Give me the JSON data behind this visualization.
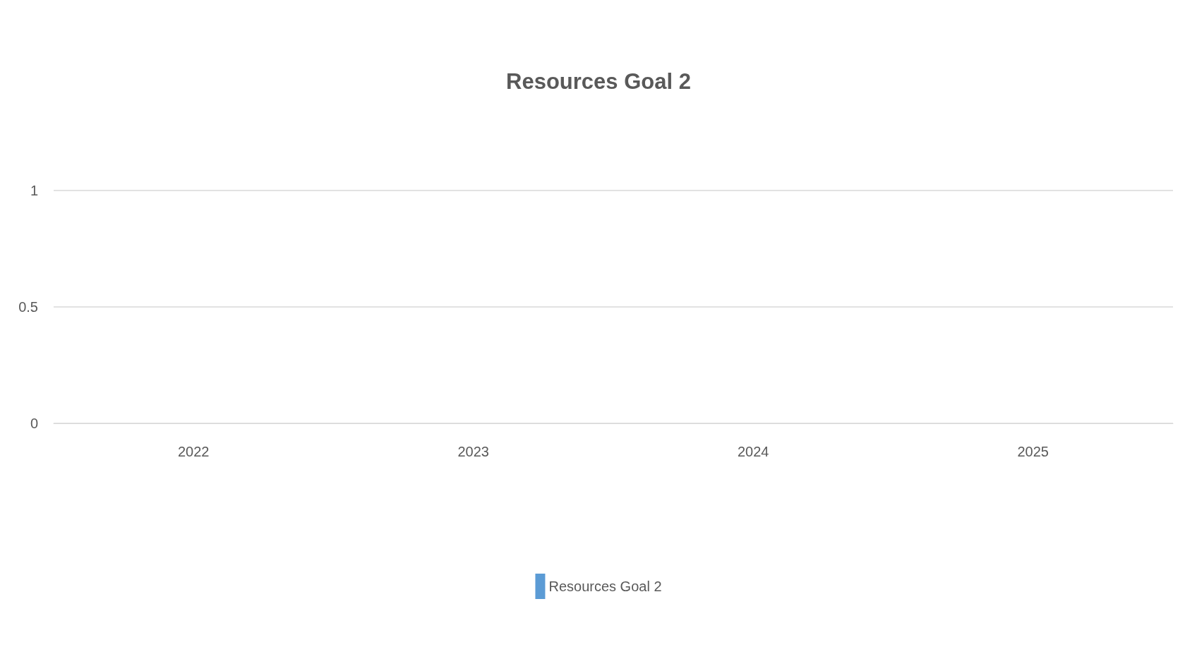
{
  "chart_data": {
    "type": "bar",
    "title": "Resources Goal 2",
    "categories": [
      "2022",
      "2023",
      "2024",
      "2025"
    ],
    "series": [
      {
        "name": "Resources Goal 2",
        "color": "#5b9bd5",
        "values": [
          0,
          0,
          0,
          0
        ]
      }
    ],
    "ylim": [
      0,
      1
    ],
    "yticks": [
      0,
      0.5,
      1
    ],
    "grid": "y",
    "legend": "bottom"
  }
}
